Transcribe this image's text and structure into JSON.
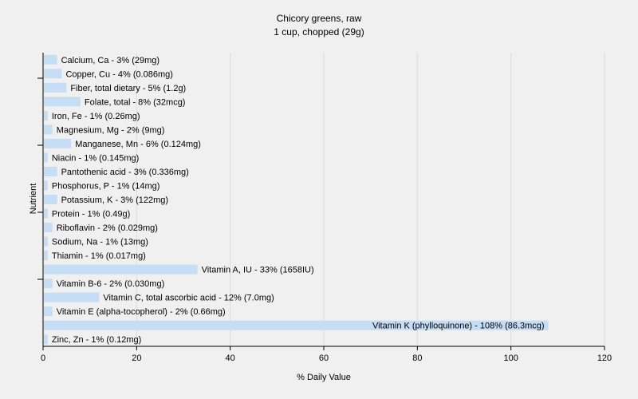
{
  "chart_data": {
    "type": "bar",
    "orientation": "horizontal",
    "title": "Chicory greens, raw",
    "subtitle": "1 cup, chopped (29g)",
    "xlabel": "% Daily Value",
    "ylabel": "Nutrient",
    "xlim": [
      0,
      120
    ],
    "xticks": [
      "0",
      "20",
      "40",
      "60",
      "80",
      "100",
      "120"
    ],
    "grid": true,
    "bar_color": "#c6ddf6",
    "categories": [
      "Calcium, Ca",
      "Copper, Cu",
      "Fiber, total dietary",
      "Folate, total",
      "Iron, Fe",
      "Magnesium, Mg",
      "Manganese, Mn",
      "Niacin",
      "Pantothenic acid",
      "Phosphorus, P",
      "Potassium, K",
      "Protein",
      "Riboflavin",
      "Sodium, Na",
      "Thiamin",
      "Vitamin A, IU",
      "Vitamin B-6",
      "Vitamin C, total ascorbic acid",
      "Vitamin E (alpha-tocopherol)",
      "Vitamin K (phylloquinone)",
      "Zinc, Zn"
    ],
    "values": [
      3,
      4,
      5,
      8,
      1,
      2,
      6,
      1,
      3,
      1,
      3,
      1,
      2,
      1,
      1,
      33,
      2,
      12,
      2,
      108,
      1
    ],
    "labels": [
      "Calcium, Ca - 3% (29mg)",
      "Copper, Cu - 4% (0.086mg)",
      "Fiber, total dietary - 5% (1.2g)",
      "Folate, total - 8% (32mcg)",
      "Iron, Fe - 1% (0.26mg)",
      "Magnesium, Mg - 2% (9mg)",
      "Manganese, Mn - 6% (0.124mg)",
      "Niacin - 1% (0.145mg)",
      "Pantothenic acid - 3% (0.336mg)",
      "Phosphorus, P - 1% (14mg)",
      "Potassium, K - 3% (122mg)",
      "Protein - 1% (0.49g)",
      "Riboflavin - 2% (0.029mg)",
      "Sodium, Na - 1% (13mg)",
      "Thiamin - 1% (0.017mg)",
      "Vitamin A, IU - 33% (1658IU)",
      "Vitamin B-6 - 2% (0.030mg)",
      "Vitamin C, total ascorbic acid - 12% (7.0mg)",
      "Vitamin E (alpha-tocopherol) - 2% (0.66mg)",
      "Vitamin K (phylloquinone) - 108% (86.3mcg)",
      "Zinc, Zn - 1% (0.12mg)"
    ]
  }
}
